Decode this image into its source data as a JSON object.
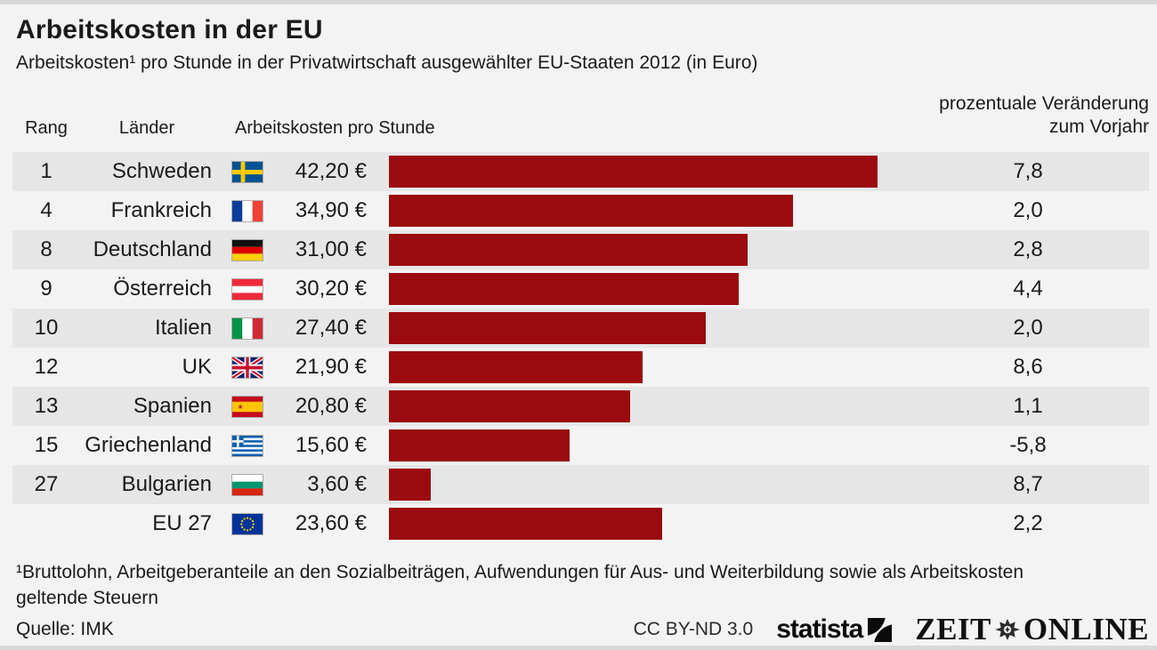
{
  "chart_data": {
    "type": "bar",
    "orientation": "horizontal",
    "title": "Arbeitskosten in der EU",
    "subtitle": "Arbeitskosten¹ pro Stunde in der Privatwirtschaft ausgewählter EU-Staaten 2012 (in Euro)",
    "xlabel": "Arbeitskosten pro Stunde (Euro)",
    "xlim": [
      0,
      42.2
    ],
    "bar_color": "#9b0a0e",
    "grid": false,
    "legend": false,
    "headers": {
      "rank": "Rang",
      "country": "Länder",
      "cost": "Arbeitskosten pro Stunde",
      "change_line1": "prozentuale Veränderung",
      "change_line2": "zum Vorjahr"
    },
    "rows": [
      {
        "rank": "1",
        "country": "Schweden",
        "flag_icon": "flag-sweden",
        "value": 42.2,
        "value_label": "42,20 €",
        "change": 7.8,
        "change_label": "7,8"
      },
      {
        "rank": "4",
        "country": "Frankreich",
        "flag_icon": "flag-france",
        "value": 34.9,
        "value_label": "34,90 €",
        "change": 2.0,
        "change_label": "2,0"
      },
      {
        "rank": "8",
        "country": "Deutschland",
        "flag_icon": "flag-germany",
        "value": 31.0,
        "value_label": "31,00 €",
        "change": 2.8,
        "change_label": "2,8"
      },
      {
        "rank": "9",
        "country": "Österreich",
        "flag_icon": "flag-austria",
        "value": 30.2,
        "value_label": "30,20 €",
        "change": 4.4,
        "change_label": "4,4"
      },
      {
        "rank": "10",
        "country": "Italien",
        "flag_icon": "flag-italy",
        "value": 27.4,
        "value_label": "27,40 €",
        "change": 2.0,
        "change_label": "2,0"
      },
      {
        "rank": "12",
        "country": "UK",
        "flag_icon": "flag-uk",
        "value": 21.9,
        "value_label": "21,90 €",
        "change": 8.6,
        "change_label": "8,6"
      },
      {
        "rank": "13",
        "country": "Spanien",
        "flag_icon": "flag-spain",
        "value": 20.8,
        "value_label": "20,80 €",
        "change": 1.1,
        "change_label": "1,1"
      },
      {
        "rank": "15",
        "country": "Griechenland",
        "flag_icon": "flag-greece",
        "value": 15.6,
        "value_label": "15,60 €",
        "change": -5.8,
        "change_label": "-5,8"
      },
      {
        "rank": "27",
        "country": "Bulgarien",
        "flag_icon": "flag-bulgaria",
        "value": 3.6,
        "value_label": "3,60 €",
        "change": 8.7,
        "change_label": "8,7"
      },
      {
        "rank": "",
        "country": "EU 27",
        "flag_icon": "flag-eu",
        "value": 23.6,
        "value_label": "23,60 €",
        "change": 2.2,
        "change_label": "2,2"
      }
    ]
  },
  "footer": {
    "footnote": "¹Bruttolohn, Arbeitgeberanteile an den Sozialbeiträgen, Aufwendungen für Aus- und Weiterbildung sowie als Arbeitskosten geltende Steuern",
    "source": "Quelle: IMK",
    "license": "CC BY-ND 3.0",
    "statista_logo_text": "statista",
    "zeit_logo_left": "ZEIT",
    "zeit_logo_right": "ONLINE"
  }
}
